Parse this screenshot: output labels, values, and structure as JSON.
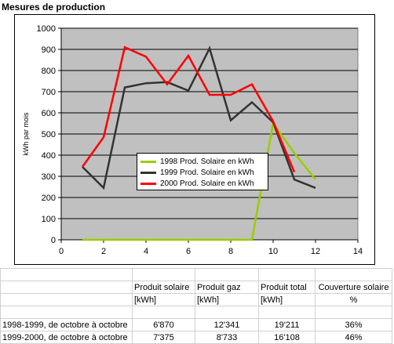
{
  "sheet": {
    "title": "Mesures de production",
    "table": {
      "header_row1": [
        "",
        "Produit solaire",
        "Produit gaz",
        "Produit total",
        "Couverture solaire"
      ],
      "header_row2": [
        "",
        "[kWh]",
        "[kWh]",
        "[kWh]",
        "%"
      ],
      "rows": [
        [
          "1998-1999, de octobre à octobre",
          "6'870",
          "12'341",
          "19'211",
          "36%"
        ],
        [
          "1999-2000, de octobre à octobre",
          "7'375",
          "8'733",
          "16'108",
          "46%"
        ]
      ]
    }
  },
  "colors": {
    "plot_bg": "#c0c0c0",
    "grid": "#000000",
    "series_1998": "#99cc00",
    "series_1999": "#333333",
    "series_2000": "#ff0000"
  },
  "chart_data": {
    "type": "line",
    "title": "",
    "xlabel": "",
    "ylabel": "kWh par mois",
    "xlim": [
      0,
      14
    ],
    "ylim": [
      0,
      1000
    ],
    "xticks": [
      0,
      2,
      4,
      6,
      8,
      10,
      12,
      14
    ],
    "yticks": [
      0,
      100,
      200,
      300,
      400,
      500,
      600,
      700,
      800,
      900,
      1000
    ],
    "grid": true,
    "legend_position": "center-left",
    "series": [
      {
        "name": "1998 Prod. Solaire en kWh",
        "color": "#99cc00",
        "x": [
          1,
          2,
          3,
          4,
          5,
          6,
          7,
          8,
          9,
          10,
          11,
          12
        ],
        "y": [
          0,
          0,
          0,
          0,
          0,
          0,
          0,
          0,
          0,
          550,
          410,
          285
        ]
      },
      {
        "name": "1999 Prod. Solaire en kWh",
        "color": "#333333",
        "x": [
          1,
          2,
          3,
          4,
          5,
          6,
          7,
          8,
          9,
          10,
          11,
          12
        ],
        "y": [
          345,
          245,
          720,
          740,
          745,
          705,
          905,
          565,
          650,
          555,
          285,
          245
        ]
      },
      {
        "name": "2000 Prod. Solaire en kWh",
        "color": "#ff0000",
        "x": [
          1,
          2,
          3,
          4,
          5,
          6,
          7,
          8,
          9,
          10,
          11
        ],
        "y": [
          345,
          485,
          910,
          865,
          735,
          870,
          685,
          685,
          735,
          560,
          320
        ]
      }
    ]
  }
}
